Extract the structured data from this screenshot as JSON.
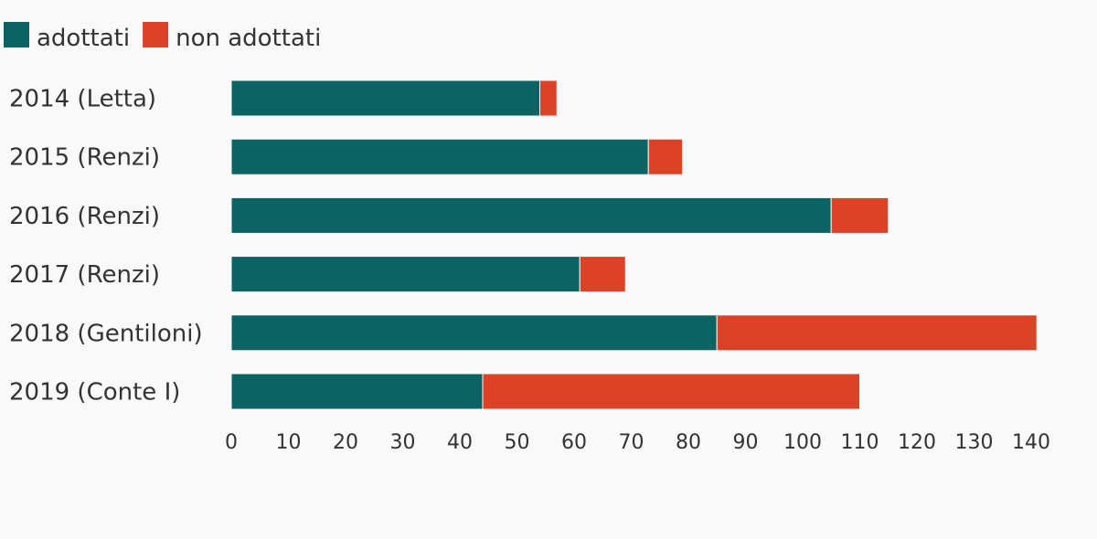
{
  "chart_data": {
    "type": "bar",
    "orientation": "horizontal",
    "stacked": true,
    "title": "",
    "xlabel": "",
    "ylabel": "",
    "categories": [
      "2014 (Letta)",
      "2015 (Renzi)",
      "2016 (Renzi)",
      "2017 (Renzi)",
      "2018 (Gentiloni)",
      "2019 (Conte I)"
    ],
    "series": [
      {
        "name": "adottati",
        "color": "#0b6363",
        "values": [
          54,
          73,
          105,
          61,
          85,
          44
        ]
      },
      {
        "name": "non adottati",
        "color": "#dc4326",
        "values": [
          3,
          6,
          10,
          8,
          56,
          66
        ]
      }
    ],
    "xlim": [
      0,
      140
    ],
    "xticks": [
      0,
      10,
      20,
      30,
      40,
      50,
      60,
      70,
      80,
      90,
      100,
      110,
      120,
      130,
      140
    ],
    "grid": false,
    "legend_position": "top-left"
  }
}
